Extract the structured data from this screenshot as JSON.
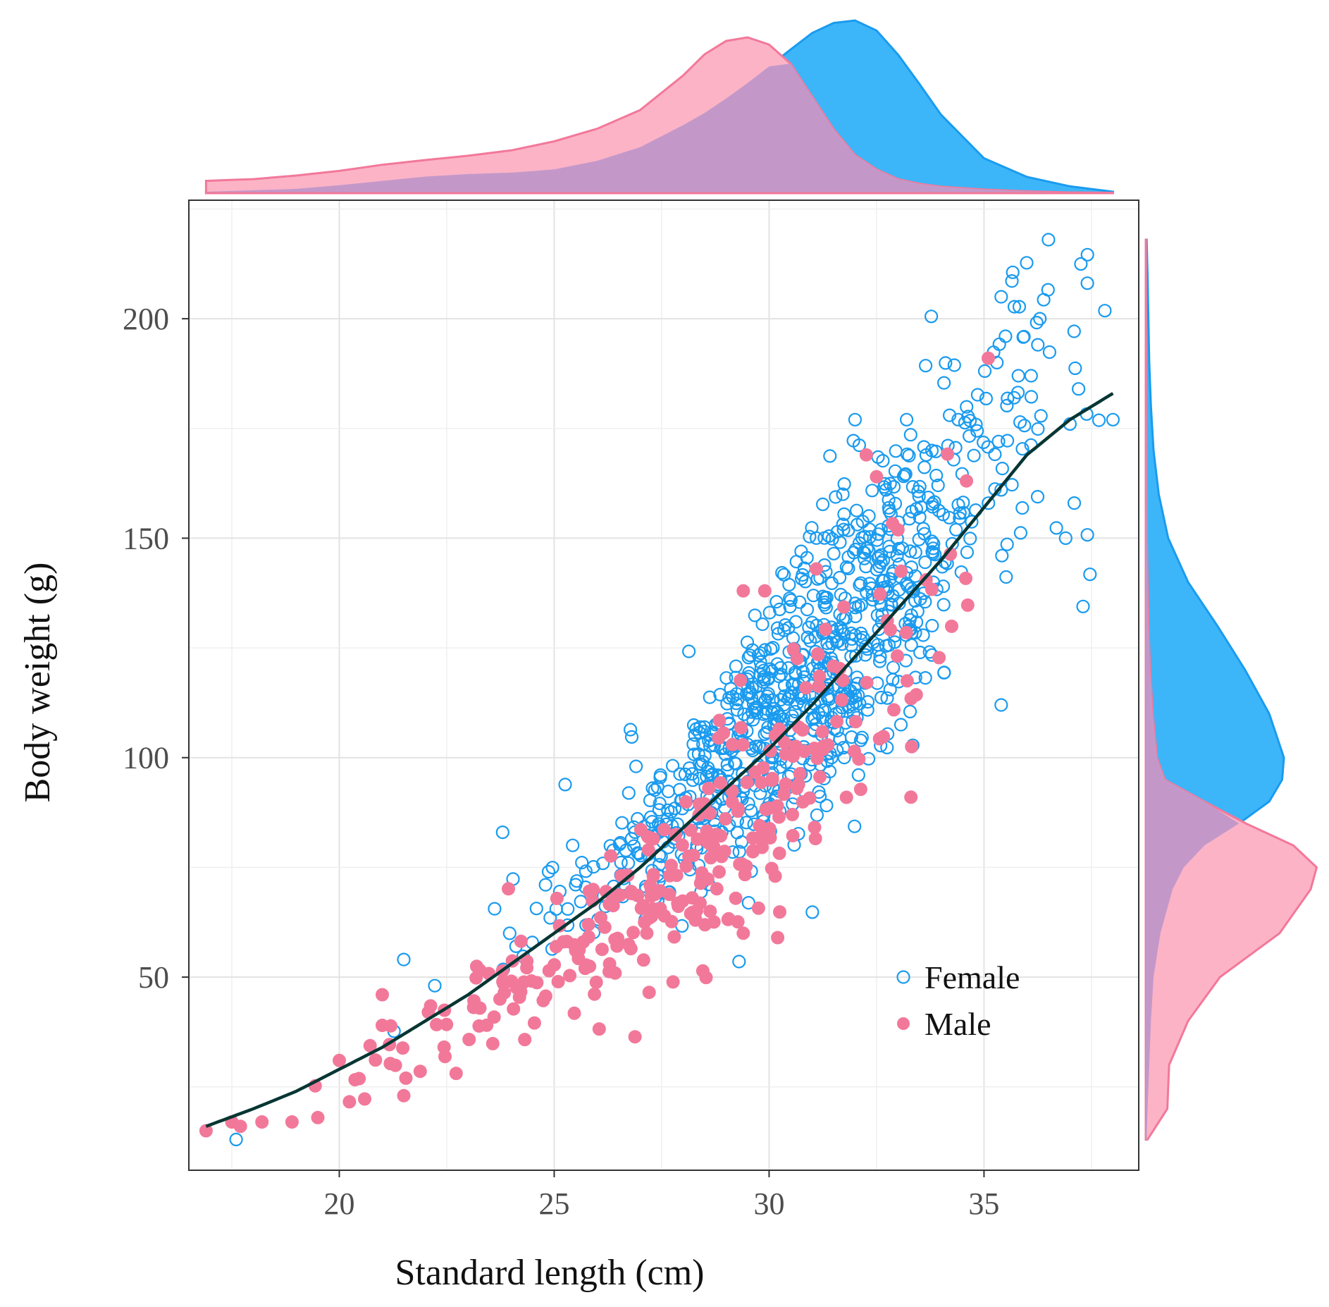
{
  "chart_data": {
    "type": "scatter",
    "title": "",
    "xlabel": "Standard length (cm)",
    "ylabel": "Body weight (g)",
    "xlim": [
      16.5,
      38.6
    ],
    "ylim": [
      6,
      227
    ],
    "x_ticks": [
      20,
      25,
      30,
      35
    ],
    "y_ticks": [
      50,
      100,
      150,
      200
    ],
    "grid": true,
    "legend_position": "lower-right inside plot",
    "colors": {
      "female": "#1a9bef",
      "male": "#f2789a",
      "fit": "#073633",
      "female_fill": "#3db6f9",
      "male_fill": "#fcb3c6",
      "overlap_fill": "#c398c9"
    },
    "legend": [
      {
        "name": "Female",
        "marker": "open-circle"
      },
      {
        "name": "Male",
        "marker": "filled-circle"
      }
    ],
    "series": [
      {
        "name": "Female",
        "marker": "open-circle",
        "n_points": 900,
        "x_mean": 30.8,
        "x_sd": 2.6,
        "x_range": [
          17.6,
          38.0
        ]
      },
      {
        "name": "Male",
        "marker": "filled-circle",
        "n_points": 300,
        "x_mean": 28.0,
        "x_sd": 3.2,
        "x_range": [
          16.9,
          35.2
        ]
      }
    ],
    "highlighted_points": {
      "Female": [
        [
          36.5,
          218
        ],
        [
          35.4,
          205
        ],
        [
          36.3,
          200
        ],
        [
          35.5,
          196
        ],
        [
          35.3,
          190
        ],
        [
          35.8,
          187
        ],
        [
          37.2,
          184
        ],
        [
          35.7,
          182
        ],
        [
          37.0,
          176
        ],
        [
          38.0,
          177
        ],
        [
          32.0,
          177
        ],
        [
          33.2,
          177
        ],
        [
          34.2,
          178
        ],
        [
          34.4,
          177
        ],
        [
          23.8,
          83
        ],
        [
          21.5,
          54
        ],
        [
          17.6,
          13
        ],
        [
          35.4,
          161
        ],
        [
          37.1,
          158
        ],
        [
          36.9,
          150
        ],
        [
          35.4,
          112
        ]
      ],
      "Male": [
        [
          16.9,
          15
        ],
        [
          17.5,
          17
        ],
        [
          17.7,
          16
        ],
        [
          18.2,
          17
        ],
        [
          18.9,
          17
        ],
        [
          19.5,
          18
        ],
        [
          20.0,
          31
        ],
        [
          21.0,
          46
        ],
        [
          21.0,
          39
        ],
        [
          21.5,
          23
        ],
        [
          35.1,
          191
        ],
        [
          32.5,
          164
        ],
        [
          31.1,
          143
        ],
        [
          29.4,
          138
        ],
        [
          29.9,
          138
        ],
        [
          30.2,
          59
        ],
        [
          29.4,
          60
        ],
        [
          33.3,
          91
        ]
      ]
    },
    "fit_line": {
      "type": "power",
      "x": [
        16.9,
        18,
        19,
        20,
        21,
        22,
        23,
        24,
        25,
        26,
        27,
        28,
        29,
        30,
        31,
        32,
        33,
        34,
        35,
        36,
        37,
        38
      ],
      "y": [
        16,
        20,
        24,
        29,
        34,
        40,
        46,
        53,
        60,
        67,
        75,
        84,
        93,
        102,
        112,
        123,
        134,
        145,
        157,
        169,
        177,
        183
      ]
    },
    "marginal_x": {
      "name": "Standard length density",
      "x": [
        16.9,
        17.5,
        18,
        19,
        20,
        21,
        22,
        23,
        24,
        25,
        26,
        27,
        28,
        28.5,
        29,
        29.5,
        30,
        30.5,
        31,
        31.5,
        32,
        32.5,
        33,
        33.5,
        34,
        35,
        36,
        37,
        38
      ],
      "Female": [
        0.004,
        0.006,
        0.008,
        0.012,
        0.022,
        0.034,
        0.046,
        0.053,
        0.057,
        0.066,
        0.09,
        0.128,
        0.189,
        0.223,
        0.263,
        0.306,
        0.352,
        0.399,
        0.445,
        0.473,
        0.48,
        0.452,
        0.385,
        0.303,
        0.218,
        0.097,
        0.045,
        0.019,
        0.004
      ],
      "Male": [
        0.034,
        0.037,
        0.039,
        0.049,
        0.062,
        0.079,
        0.092,
        0.104,
        0.119,
        0.144,
        0.179,
        0.231,
        0.327,
        0.386,
        0.423,
        0.433,
        0.413,
        0.36,
        0.269,
        0.178,
        0.106,
        0.066,
        0.039,
        0.026,
        0.018,
        0.01,
        0.005,
        0.002,
        0.001
      ]
    },
    "marginal_y": {
      "name": "Body weight density",
      "y": [
        13,
        20,
        30,
        40,
        50,
        60,
        70,
        75,
        80,
        85,
        90,
        95,
        100,
        110,
        120,
        130,
        140,
        150,
        160,
        170,
        180,
        190,
        200,
        210,
        218
      ],
      "Female": [
        0.001,
        0.002,
        0.004,
        0.006,
        0.009,
        0.017,
        0.031,
        0.044,
        0.068,
        0.108,
        0.143,
        0.158,
        0.16,
        0.143,
        0.115,
        0.083,
        0.049,
        0.026,
        0.015,
        0.009,
        0.006,
        0.004,
        0.003,
        0.002,
        0.001
      ],
      "Male": [
        0.002,
        0.025,
        0.027,
        0.049,
        0.086,
        0.155,
        0.191,
        0.198,
        0.171,
        0.116,
        0.068,
        0.022,
        0.013,
        0.008,
        0.005,
        0.003,
        0.002,
        0.0012,
        0.0009,
        0.0007,
        0.0005,
        0.0005,
        0.0004,
        0.0003,
        0.0002
      ]
    }
  }
}
